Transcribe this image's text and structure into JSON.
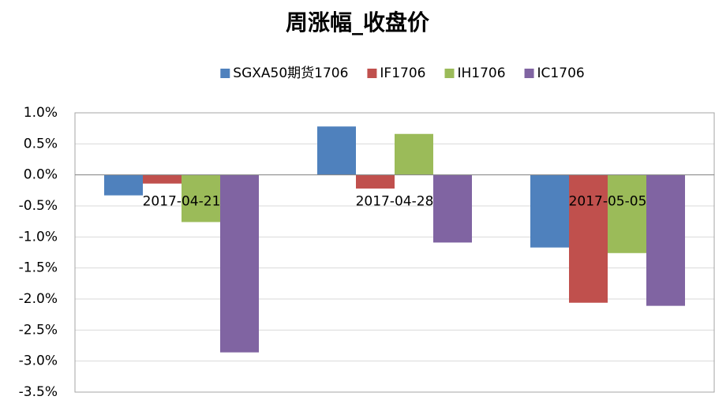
{
  "chart_data": {
    "type": "bar",
    "title": "周涨幅_收盘价",
    "categories": [
      "2017-04-21",
      "2017-04-28",
      "2017-05-05"
    ],
    "series": [
      {
        "name": "SGXA50期货1706",
        "color": "#4f81bd",
        "values": [
          -0.33,
          0.78,
          -1.17
        ]
      },
      {
        "name": "IF1706",
        "color": "#c0504d",
        "values": [
          -0.14,
          -0.22,
          -2.06
        ]
      },
      {
        "name": "IH1706",
        "color": "#9bbb59",
        "values": [
          -0.76,
          0.66,
          -1.26
        ]
      },
      {
        "name": "IC1706",
        "color": "#8064a2",
        "values": [
          -2.86,
          -1.09,
          -2.11
        ]
      }
    ],
    "ylim": [
      -3.5,
      1.0
    ],
    "yticks": [
      {
        "value": -3.5,
        "label": "-3.5%"
      },
      {
        "value": -3.0,
        "label": "-3.0%"
      },
      {
        "value": -2.5,
        "label": "-2.5%"
      },
      {
        "value": -2.0,
        "label": "-2.0%"
      },
      {
        "value": -1.5,
        "label": "-1.5%"
      },
      {
        "value": -1.0,
        "label": "-1.0%"
      },
      {
        "value": -0.5,
        "label": "-0.5%"
      },
      {
        "value": 0.0,
        "label": "0.0%"
      },
      {
        "value": 0.5,
        "label": "0.5%"
      },
      {
        "value": 1.0,
        "label": "1.0%"
      }
    ],
    "grid": true,
    "legend": "top"
  }
}
